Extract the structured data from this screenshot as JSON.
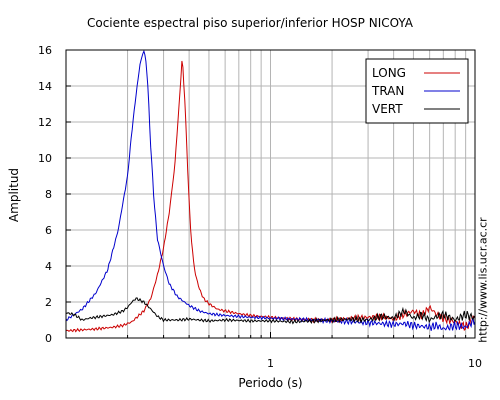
{
  "chart_data": {
    "type": "line",
    "title": "Cociente espectral piso superior/inferior  HOSP NICOYA",
    "xlabel": "Periodo (s)",
    "ylabel": "Amplitud",
    "xscale": "log",
    "xlim": [
      0.1,
      10
    ],
    "ylim": [
      0,
      16
    ],
    "x_ticks": [
      1,
      10
    ],
    "x_tick_labels": [
      "1",
      "10"
    ],
    "y_ticks": [
      0,
      2,
      4,
      6,
      8,
      10,
      12,
      14,
      16
    ],
    "y_tick_labels": [
      "0",
      "2",
      "4",
      "6",
      "8",
      "10",
      "12",
      "14",
      "16"
    ],
    "grid": true,
    "legend_position": "top-right",
    "series": [
      {
        "name": "LONG",
        "color": "#cc0000",
        "x": [
          0.1,
          0.12,
          0.14,
          0.17,
          0.19,
          0.21,
          0.24,
          0.26,
          0.28,
          0.3,
          0.32,
          0.34,
          0.35,
          0.36,
          0.37,
          0.38,
          0.39,
          0.4,
          0.41,
          0.42,
          0.43,
          0.45,
          0.47,
          0.5,
          0.55,
          0.6,
          0.7,
          0.8,
          1.0,
          1.3,
          1.6,
          2.0,
          2.5,
          3.0,
          3.5,
          4.0,
          4.5,
          5.0,
          5.5,
          6.0,
          6.5,
          7.0,
          8.0,
          9.0,
          10.0
        ],
        "y": [
          0.4,
          0.45,
          0.5,
          0.6,
          0.7,
          0.9,
          1.5,
          2.2,
          3.5,
          5.0,
          7.0,
          9.5,
          11.5,
          13.5,
          15.6,
          13.5,
          10.5,
          7.5,
          5.5,
          4.3,
          3.5,
          2.7,
          2.2,
          1.9,
          1.6,
          1.5,
          1.35,
          1.25,
          1.15,
          1.05,
          1.0,
          1.0,
          1.1,
          1.15,
          1.2,
          1.05,
          1.3,
          1.5,
          1.25,
          1.7,
          1.3,
          1.1,
          0.9,
          0.6,
          1.2
        ]
      },
      {
        "name": "TRAN",
        "color": "#0000cc",
        "x": [
          0.1,
          0.12,
          0.14,
          0.16,
          0.18,
          0.2,
          0.21,
          0.22,
          0.23,
          0.24,
          0.245,
          0.25,
          0.255,
          0.26,
          0.27,
          0.28,
          0.3,
          0.32,
          0.35,
          0.4,
          0.45,
          0.5,
          0.6,
          0.7,
          0.8,
          1.0,
          1.3,
          1.6,
          2.0,
          2.5,
          3.0,
          3.5,
          4.0,
          4.5,
          5.0,
          5.5,
          6.0,
          6.5,
          7.0,
          8.0,
          9.0,
          10.0
        ],
        "y": [
          1.0,
          1.6,
          2.5,
          3.8,
          6.0,
          9.0,
          11.5,
          13.5,
          15.2,
          16.0,
          15.5,
          14.5,
          12.5,
          10.5,
          7.5,
          5.5,
          4.0,
          3.0,
          2.3,
          1.8,
          1.5,
          1.35,
          1.25,
          1.2,
          1.15,
          1.1,
          1.05,
          1.0,
          0.95,
          0.9,
          0.85,
          0.8,
          0.75,
          0.8,
          0.7,
          0.65,
          0.6,
          0.7,
          0.5,
          0.7,
          0.6,
          1.0
        ]
      },
      {
        "name": "VERT",
        "color": "#000000",
        "x": [
          0.1,
          0.11,
          0.12,
          0.13,
          0.15,
          0.17,
          0.19,
          0.2,
          0.21,
          0.22,
          0.24,
          0.26,
          0.28,
          0.3,
          0.35,
          0.4,
          0.5,
          0.6,
          0.8,
          1.0,
          1.3,
          1.6,
          2.0,
          2.5,
          3.0,
          3.5,
          4.0,
          4.5,
          5.0,
          5.5,
          6.0,
          6.5,
          7.0,
          8.0,
          9.0,
          10.0
        ],
        "y": [
          1.4,
          1.3,
          1.0,
          1.1,
          1.2,
          1.3,
          1.5,
          1.7,
          2.0,
          2.2,
          2.0,
          1.6,
          1.2,
          1.0,
          1.0,
          1.05,
          0.95,
          1.0,
          0.95,
          0.95,
          0.9,
          0.95,
          1.0,
          1.05,
          1.0,
          1.2,
          1.1,
          1.5,
          1.1,
          1.3,
          1.0,
          1.2,
          1.3,
          1.0,
          1.3,
          1.1
        ]
      }
    ]
  },
  "watermark": "http://www.lis.ucr.ac.cr"
}
